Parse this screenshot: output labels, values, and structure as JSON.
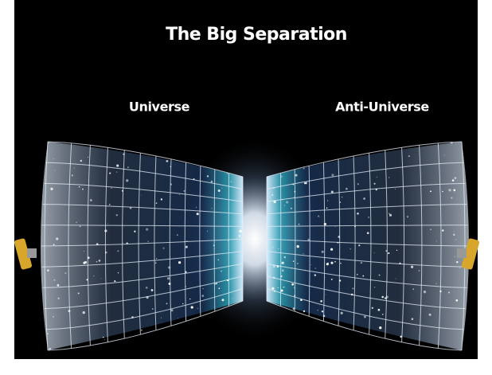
{
  "header": {
    "title": "The Big Separation"
  },
  "labels": {
    "left": "Universe",
    "right": "Anti-Universe"
  }
}
